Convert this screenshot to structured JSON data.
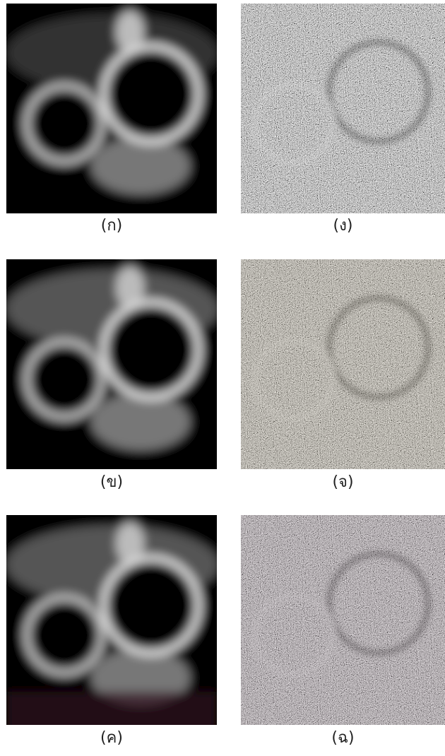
{
  "figure": {
    "panels": [
      {
        "label": "(ก)"
      },
      {
        "label": "(ง)"
      },
      {
        "label": "(ข)"
      },
      {
        "label": "(จ)"
      },
      {
        "label": "(ค)"
      },
      {
        "label": "(ฉ)"
      }
    ]
  }
}
